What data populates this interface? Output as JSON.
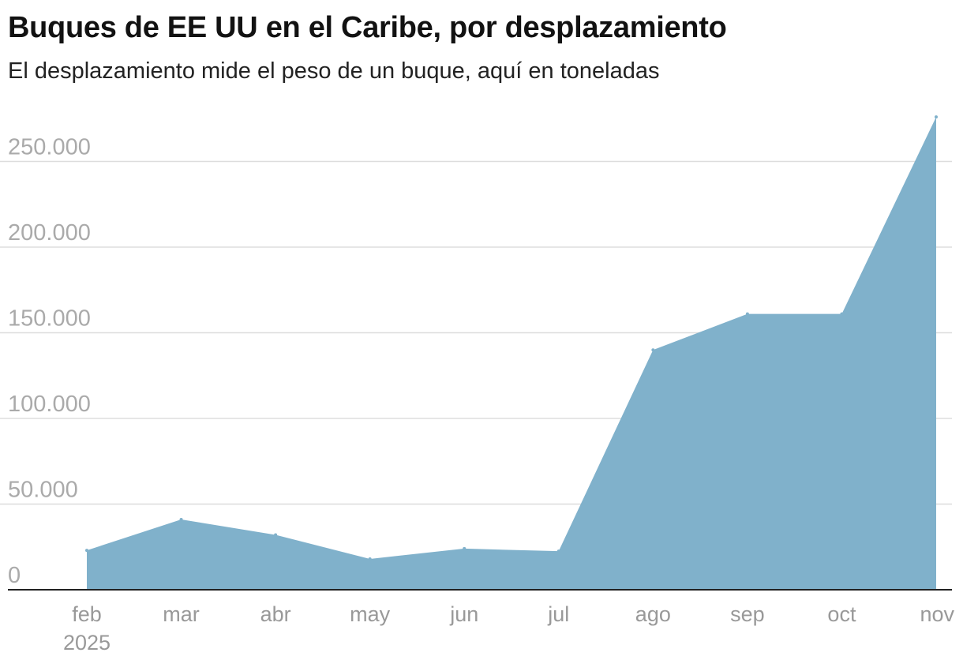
{
  "title": "Buques de EE UU en el Caribe, por desplazamiento",
  "subtitle": "El desplazamiento mide el peso de un buque, aquí en toneladas",
  "colors": {
    "area": "#80b1cb",
    "grid": "#dddddd",
    "baseline": "#222222"
  },
  "chart_data": {
    "type": "area",
    "title": "Buques de EE UU en el Caribe, por desplazamiento",
    "subtitle": "El desplazamiento mide el peso de un buque, aquí en toneladas",
    "xlabel": "",
    "ylabel": "",
    "categories": [
      "feb",
      "mar",
      "abr",
      "may",
      "jun",
      "jul",
      "ago",
      "sep",
      "oct",
      "nov"
    ],
    "year_label": "2025",
    "values": [
      23000,
      41000,
      32000,
      18000,
      24000,
      22500,
      140000,
      161000,
      161000,
      276000
    ],
    "ylim": [
      0,
      276000
    ],
    "yticks": [
      0,
      50000,
      100000,
      150000,
      200000,
      250000
    ],
    "ytick_labels": [
      "0",
      "50.000",
      "100.000",
      "150.000",
      "200.000",
      "250.000"
    ],
    "grid": true,
    "legend": "none"
  }
}
